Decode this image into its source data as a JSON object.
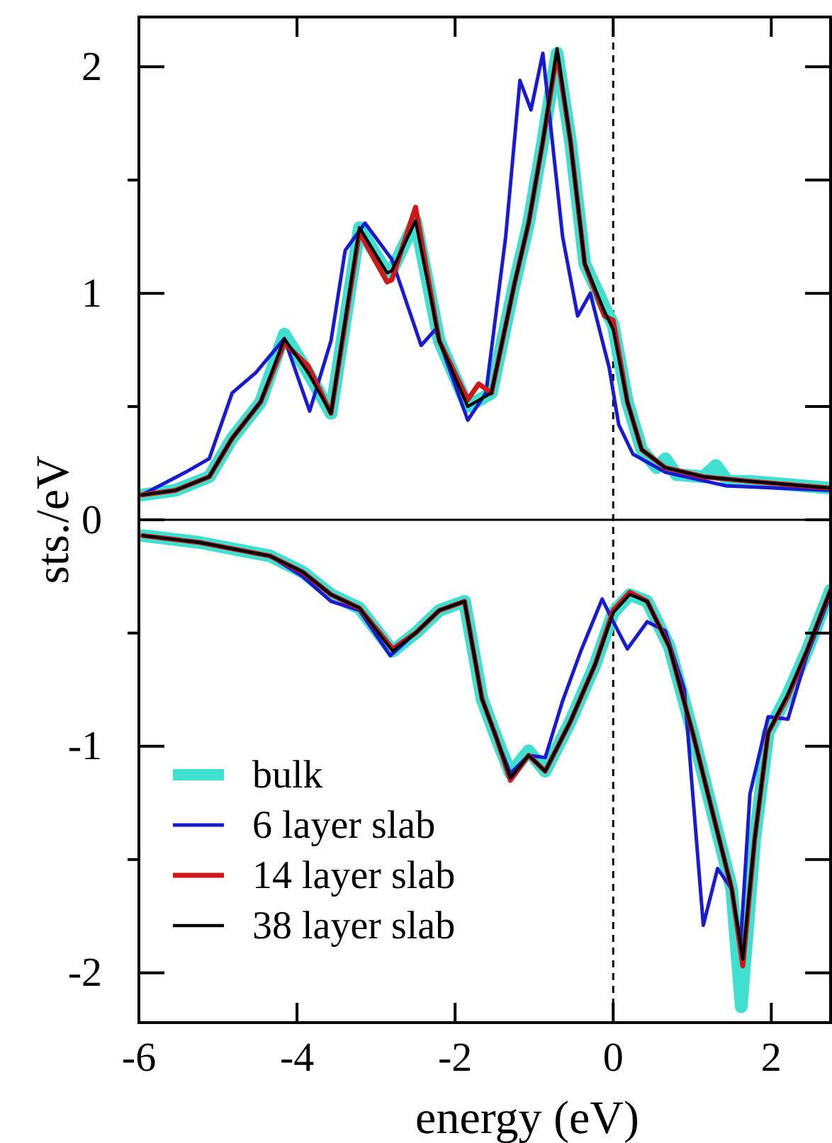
{
  "chart_data": {
    "type": "line",
    "xlabel": "energy (eV)",
    "ylabel": "sts./eV",
    "xlim": [
      -6,
      2.75
    ],
    "ylim": [
      -2.22,
      2.22
    ],
    "xticks": [
      -6,
      -4,
      -2,
      0,
      2
    ],
    "yticks": [
      -2,
      {
        "value": -1.5,
        "label": null
      },
      -1,
      {
        "value": -0.5,
        "label": null
      },
      0,
      {
        "value": 0.5,
        "label": null
      },
      1,
      {
        "value": 1.5,
        "label": null
      },
      2
    ],
    "grid": false,
    "legend": "bottom left",
    "line_style": "solid",
    "marker": "none",
    "ref_lines": [
      {
        "axis": "y",
        "value": 0,
        "color": "#000000",
        "line_style": "solid"
      },
      {
        "axis": "x",
        "value": 0,
        "color": "#000000",
        "line_style": "dashed"
      }
    ],
    "series": [
      {
        "name": "bulk",
        "color": "#40e0d0",
        "x": [
          -5.96,
          -5.54,
          -5.11,
          -4.82,
          -4.46,
          -4.16,
          -3.86,
          -3.57,
          -3.21,
          -2.86,
          -2.8,
          -2.5,
          -2.2,
          -1.84,
          -1.54,
          -1.25,
          -1.07,
          -0.89,
          -0.71,
          -0.54,
          -0.36,
          -0.11,
          0,
          0.18,
          0.36,
          0.55,
          0.66,
          0.8,
          1.14,
          1.3,
          1.45,
          1.73,
          2.75
        ],
        "values": [
          0.11,
          0.13,
          0.19,
          0.36,
          0.52,
          0.82,
          0.65,
          0.47,
          1.29,
          1.09,
          1.1,
          1.32,
          0.79,
          0.5,
          0.56,
          1.04,
          1.31,
          1.67,
          2.06,
          1.67,
          1.13,
          0.94,
          0.86,
          0.52,
          0.31,
          0.23,
          0.27,
          0.2,
          0.19,
          0.24,
          0.17,
          0.17,
          0.14
        ]
      },
      {
        "name": "6 layer slab",
        "color": "#1a1ad0",
        "x": [
          -5.96,
          -5.41,
          -5.11,
          -4.82,
          -4.52,
          -4.16,
          -3.84,
          -3.57,
          -3.39,
          -3.14,
          -2.8,
          -2.43,
          -2.25,
          -1.84,
          -1.61,
          -1.36,
          -1.18,
          -1.04,
          -0.89,
          -0.64,
          -0.45,
          -0.29,
          -0.05,
          0.07,
          0.25,
          0.66,
          1.43,
          2.75
        ],
        "values": [
          0.11,
          0.21,
          0.27,
          0.56,
          0.65,
          0.8,
          0.48,
          0.79,
          1.19,
          1.31,
          1.15,
          0.77,
          0.84,
          0.44,
          0.56,
          1.25,
          1.94,
          1.81,
          2.06,
          1.25,
          0.9,
          1.0,
          0.67,
          0.42,
          0.29,
          0.21,
          0.15,
          0.13
        ]
      },
      {
        "name": "14 layer slab",
        "color": "#d01818",
        "x": [
          -5.96,
          -5.54,
          -5.11,
          -4.82,
          -4.46,
          -4.16,
          -3.86,
          -3.57,
          -3.21,
          -2.86,
          -2.8,
          -2.5,
          -2.2,
          -1.84,
          -1.7,
          -1.54,
          -1.25,
          -1.07,
          -0.89,
          -0.71,
          -0.54,
          -0.36,
          -0.11,
          0,
          0.18,
          0.36,
          0.66,
          1.14,
          1.73,
          2.75
        ],
        "values": [
          0.11,
          0.13,
          0.19,
          0.36,
          0.52,
          0.78,
          0.68,
          0.47,
          1.27,
          1.05,
          1.06,
          1.38,
          0.79,
          0.53,
          0.6,
          0.56,
          1.04,
          1.31,
          1.67,
          2.06,
          1.67,
          1.13,
          0.9,
          0.88,
          0.52,
          0.31,
          0.23,
          0.19,
          0.17,
          0.14
        ]
      },
      {
        "name": "38 layer slab",
        "color": "#000000",
        "x": [
          -5.96,
          -5.54,
          -5.11,
          -4.82,
          -4.46,
          -4.16,
          -3.86,
          -3.57,
          -3.21,
          -2.86,
          -2.8,
          -2.5,
          -2.2,
          -1.84,
          -1.54,
          -1.25,
          -1.07,
          -0.89,
          -0.71,
          -0.54,
          -0.36,
          -0.11,
          0,
          0.18,
          0.36,
          0.66,
          1.14,
          1.73,
          2.75
        ],
        "values": [
          0.11,
          0.13,
          0.19,
          0.36,
          0.52,
          0.8,
          0.65,
          0.47,
          1.29,
          1.09,
          1.1,
          1.32,
          0.79,
          0.5,
          0.56,
          1.04,
          1.31,
          1.67,
          2.08,
          1.67,
          1.13,
          0.92,
          0.84,
          0.52,
          0.31,
          0.23,
          0.19,
          0.17,
          0.14
        ]
      },
      {
        "color": "#40e0d0",
        "x": [
          -5.95,
          -5.23,
          -4.34,
          -3.93,
          -3.57,
          -3.21,
          -2.79,
          -2.5,
          -2.2,
          -1.88,
          -1.66,
          -1.48,
          -1.3,
          -1.07,
          -0.86,
          -0.54,
          -0.23,
          0,
          0.21,
          0.43,
          0.71,
          1.02,
          1.32,
          1.5,
          1.62,
          1.79,
          1.96,
          2.21,
          2.45,
          2.75
        ],
        "values": [
          -0.07,
          -0.1,
          -0.16,
          -0.23,
          -0.33,
          -0.39,
          -0.58,
          -0.5,
          -0.4,
          -0.36,
          -0.79,
          -0.96,
          -1.12,
          -1.02,
          -1.11,
          -0.89,
          -0.64,
          -0.41,
          -0.33,
          -0.36,
          -0.56,
          -0.96,
          -1.38,
          -1.63,
          -2.15,
          -1.41,
          -0.94,
          -0.77,
          -0.58,
          -0.31
        ]
      },
      {
        "color": "#1a1ad0",
        "x": [
          -5.95,
          -5.23,
          -4.34,
          -3.93,
          -3.57,
          -3.21,
          -2.82,
          -2.5,
          -2.2,
          -1.88,
          -1.66,
          -1.48,
          -1.3,
          -1.07,
          -0.86,
          -0.64,
          -0.41,
          -0.14,
          0,
          0.18,
          0.43,
          0.66,
          0.9,
          1.14,
          1.32,
          1.5,
          1.61,
          1.73,
          1.96,
          2.21,
          2.45,
          2.75
        ],
        "values": [
          -0.07,
          -0.1,
          -0.16,
          -0.25,
          -0.36,
          -0.4,
          -0.6,
          -0.5,
          -0.4,
          -0.36,
          -0.79,
          -0.96,
          -1.12,
          -1.04,
          -1.05,
          -0.8,
          -0.58,
          -0.35,
          -0.45,
          -0.57,
          -0.45,
          -0.49,
          -0.75,
          -1.79,
          -1.54,
          -1.63,
          -1.88,
          -1.21,
          -0.87,
          -0.88,
          -0.6,
          -0.33
        ]
      },
      {
        "color": "#d01818",
        "x": [
          -5.95,
          -5.23,
          -4.34,
          -3.93,
          -3.57,
          -3.21,
          -2.79,
          -2.5,
          -2.2,
          -1.88,
          -1.66,
          -1.48,
          -1.3,
          -1.07,
          -0.86,
          -0.54,
          -0.23,
          0,
          0.21,
          0.43,
          0.71,
          1.02,
          1.32,
          1.5,
          1.64,
          1.79,
          1.96,
          2.21,
          2.45,
          2.75
        ],
        "values": [
          -0.07,
          -0.1,
          -0.16,
          -0.23,
          -0.33,
          -0.39,
          -0.57,
          -0.5,
          -0.4,
          -0.36,
          -0.79,
          -0.96,
          -1.15,
          -1.04,
          -1.11,
          -0.89,
          -0.64,
          -0.4,
          -0.32,
          -0.36,
          -0.56,
          -0.96,
          -1.38,
          -1.63,
          -1.97,
          -1.41,
          -0.94,
          -0.78,
          -0.58,
          -0.31
        ]
      },
      {
        "color": "#000000",
        "x": [
          -5.95,
          -5.23,
          -4.34,
          -3.93,
          -3.57,
          -3.21,
          -2.79,
          -2.5,
          -2.2,
          -1.88,
          -1.66,
          -1.48,
          -1.3,
          -1.07,
          -0.86,
          -0.54,
          -0.23,
          0,
          0.21,
          0.43,
          0.71,
          1.02,
          1.32,
          1.5,
          1.64,
          1.79,
          1.96,
          2.21,
          2.45,
          2.75
        ],
        "values": [
          -0.07,
          -0.1,
          -0.16,
          -0.23,
          -0.33,
          -0.39,
          -0.58,
          -0.5,
          -0.4,
          -0.36,
          -0.79,
          -0.96,
          -1.14,
          -1.04,
          -1.11,
          -0.89,
          -0.64,
          -0.41,
          -0.33,
          -0.36,
          -0.56,
          -0.96,
          -1.38,
          -1.63,
          -1.94,
          -1.41,
          -0.94,
          -0.77,
          -0.58,
          -0.31
        ]
      }
    ]
  }
}
